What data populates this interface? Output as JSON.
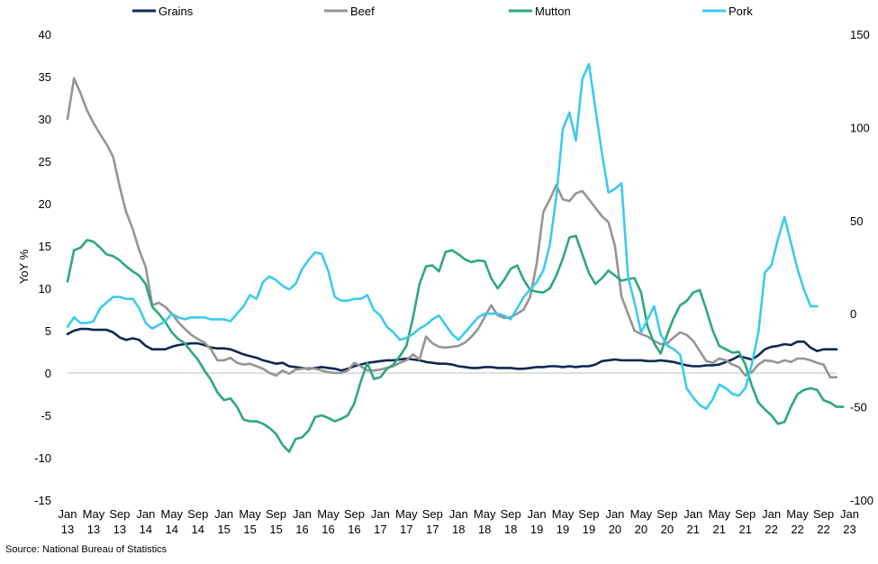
{
  "source": "Source: National Bureau of Statistics",
  "chart_data": {
    "type": "line",
    "title": "",
    "ylabel": "YoY %",
    "xlabel": "",
    "ylim": [
      -15,
      40
    ],
    "y_ticks": [
      40,
      35,
      30,
      25,
      20,
      15,
      10,
      5,
      0,
      -5,
      -10,
      -15
    ],
    "y2lim": [
      -100,
      150
    ],
    "y2_ticks": [
      150,
      100,
      50,
      0,
      -50,
      -100
    ],
    "legend_position": "top",
    "grid": false,
    "x_start": "Jan 2013",
    "x_end": "Mar 2023",
    "x_ticks": [
      {
        "top": "Jan",
        "bottom": "13"
      },
      {
        "top": "May",
        "bottom": "13"
      },
      {
        "top": "Sep",
        "bottom": "13"
      },
      {
        "top": "Jan",
        "bottom": "14"
      },
      {
        "top": "May",
        "bottom": "14"
      },
      {
        "top": "Sep",
        "bottom": "14"
      },
      {
        "top": "Jan",
        "bottom": "15"
      },
      {
        "top": "May",
        "bottom": "15"
      },
      {
        "top": "Sep",
        "bottom": "15"
      },
      {
        "top": "Jan",
        "bottom": "16"
      },
      {
        "top": "May",
        "bottom": "16"
      },
      {
        "top": "Sep",
        "bottom": "16"
      },
      {
        "top": "Jan",
        "bottom": "17"
      },
      {
        "top": "May",
        "bottom": "17"
      },
      {
        "top": "Sep",
        "bottom": "17"
      },
      {
        "top": "Jan",
        "bottom": "18"
      },
      {
        "top": "May",
        "bottom": "18"
      },
      {
        "top": "Sep",
        "bottom": "18"
      },
      {
        "top": "Jan",
        "bottom": "19"
      },
      {
        "top": "May",
        "bottom": "19"
      },
      {
        "top": "Sep",
        "bottom": "19"
      },
      {
        "top": "Jan",
        "bottom": "20"
      },
      {
        "top": "May",
        "bottom": "20"
      },
      {
        "top": "Sep",
        "bottom": "20"
      },
      {
        "top": "Jan",
        "bottom": "21"
      },
      {
        "top": "May",
        "bottom": "21"
      },
      {
        "top": "Sep",
        "bottom": "21"
      },
      {
        "top": "Jan",
        "bottom": "22"
      },
      {
        "top": "May",
        "bottom": "22"
      },
      {
        "top": "Sep",
        "bottom": "22"
      },
      {
        "top": "Jan",
        "bottom": "23"
      }
    ],
    "series": [
      {
        "name": "Grains",
        "color": "#0e2850",
        "axis": "left",
        "values": [
          4.6,
          5.0,
          5.2,
          5.2,
          5.1,
          5.1,
          5.1,
          4.8,
          4.2,
          3.9,
          4.1,
          3.9,
          3.2,
          2.8,
          2.8,
          2.8,
          3.1,
          3.3,
          3.4,
          3.5,
          3.5,
          3.3,
          3.0,
          2.9,
          2.9,
          2.8,
          2.5,
          2.2,
          2.0,
          1.8,
          1.5,
          1.3,
          1.1,
          1.2,
          0.8,
          0.7,
          0.6,
          0.5,
          0.6,
          0.7,
          0.6,
          0.5,
          0.3,
          0.5,
          0.8,
          1.0,
          1.2,
          1.3,
          1.4,
          1.5,
          1.5,
          1.6,
          1.7,
          1.6,
          1.5,
          1.3,
          1.2,
          1.1,
          1.1,
          1.0,
          0.8,
          0.7,
          0.6,
          0.6,
          0.7,
          0.7,
          0.6,
          0.6,
          0.6,
          0.5,
          0.5,
          0.6,
          0.7,
          0.7,
          0.8,
          0.8,
          0.7,
          0.8,
          0.7,
          0.8,
          0.8,
          1.0,
          1.4,
          1.5,
          1.6,
          1.5,
          1.5,
          1.5,
          1.5,
          1.4,
          1.4,
          1.5,
          1.4,
          1.3,
          1.1,
          0.9,
          0.8,
          0.8,
          0.9,
          0.9,
          1.0,
          1.3,
          1.6,
          2.0,
          1.8,
          1.6,
          2.1,
          2.8,
          3.1,
          3.2,
          3.4,
          3.3,
          3.7,
          3.7,
          3.0,
          2.6,
          2.8,
          2.8,
          2.8
        ]
      },
      {
        "name": "Beef",
        "color": "#959595",
        "axis": "left",
        "values": [
          30.0,
          34.8,
          33.0,
          31.0,
          29.5,
          28.2,
          27.0,
          25.5,
          22.0,
          19.0,
          17.0,
          14.5,
          12.5,
          8.0,
          8.3,
          7.8,
          7.0,
          6.0,
          5.2,
          4.5,
          4.0,
          3.6,
          2.8,
          1.5,
          1.5,
          1.8,
          1.2,
          1.0,
          1.1,
          0.8,
          0.5,
          0.0,
          -0.3,
          0.3,
          -0.1,
          0.4,
          0.5,
          0.6,
          0.5,
          0.3,
          0.1,
          0.0,
          0.0,
          0.3,
          1.2,
          0.8,
          0.3,
          0.3,
          0.4,
          0.6,
          0.8,
          1.2,
          1.5,
          2.2,
          1.6,
          4.3,
          3.5,
          3.1,
          3.0,
          3.1,
          3.2,
          3.6,
          4.3,
          5.2,
          6.6,
          8.0,
          6.8,
          6.5,
          6.6,
          7.0,
          7.5,
          9.0,
          13.0,
          19.0,
          20.5,
          22.2,
          20.5,
          20.3,
          21.2,
          21.5,
          20.5,
          19.5,
          18.5,
          17.8,
          15.0,
          9.0,
          7.0,
          5.0,
          4.6,
          4.3,
          3.8,
          3.4,
          3.5,
          4.2,
          4.8,
          4.5,
          3.8,
          2.6,
          1.4,
          1.2,
          1.7,
          1.5,
          1.0,
          0.7,
          -0.3,
          0.1,
          1.0,
          1.5,
          1.4,
          1.2,
          1.5,
          1.3,
          1.7,
          1.7,
          1.5,
          1.2,
          1.0,
          -0.5,
          -0.5
        ]
      },
      {
        "name": "Mutton",
        "color": "#2ea87c",
        "axis": "left",
        "values": [
          10.8,
          14.5,
          14.8,
          15.7,
          15.5,
          14.8,
          14.0,
          13.8,
          13.3,
          12.6,
          12.0,
          11.5,
          10.5,
          7.8,
          7.0,
          6.0,
          4.8,
          4.0,
          3.5,
          2.5,
          1.6,
          0.3,
          -0.8,
          -2.3,
          -3.2,
          -3.0,
          -4.0,
          -5.5,
          -5.7,
          -5.7,
          -6.0,
          -6.5,
          -7.2,
          -8.5,
          -9.3,
          -7.8,
          -7.6,
          -6.8,
          -5.2,
          -5.0,
          -5.3,
          -5.7,
          -5.4,
          -5.0,
          -3.6,
          -1.0,
          1.2,
          -0.7,
          -0.5,
          0.5,
          1.0,
          2.0,
          3.2,
          6.5,
          10.5,
          12.6,
          12.7,
          12.0,
          14.3,
          14.5,
          14.0,
          13.4,
          13.1,
          13.3,
          13.2,
          11.2,
          10.0,
          11.0,
          12.3,
          12.7,
          11.0,
          9.8,
          9.6,
          9.5,
          10.0,
          11.5,
          13.5,
          16.0,
          16.2,
          14.0,
          11.8,
          10.5,
          11.2,
          12.1,
          11.5,
          10.9,
          11.1,
          11.2,
          9.5,
          5.5,
          3.5,
          2.3,
          4.5,
          6.5,
          8.0,
          8.5,
          9.5,
          9.8,
          7.5,
          5.0,
          3.2,
          2.8,
          2.4,
          2.5,
          1.0,
          -1.5,
          -3.5,
          -4.3,
          -5.0,
          -6.0,
          -5.8,
          -4.0,
          -2.5,
          -2.0,
          -1.8,
          -2.0,
          -3.2,
          -3.5,
          -4.0,
          -4.0
        ]
      },
      {
        "name": "Pork",
        "color": "#3ccaef",
        "axis": "right",
        "values": [
          -7,
          -2,
          -5,
          -5,
          -4,
          3,
          6,
          9,
          9,
          8,
          8,
          3,
          -5,
          -8,
          -6,
          -4,
          0,
          -2,
          -3,
          -2,
          -2,
          -2,
          -3,
          -3,
          -3,
          -4,
          0,
          4,
          10,
          8,
          17,
          20,
          18,
          15,
          13,
          16,
          24,
          29,
          33,
          32,
          23,
          9,
          7,
          7,
          8,
          8,
          10,
          2,
          -1,
          -7,
          -10,
          -14,
          -13,
          -11,
          -8,
          -6,
          -3,
          -1,
          -6,
          -11,
          -14,
          -10,
          -6,
          -2,
          0,
          0,
          0,
          -1,
          -3,
          3,
          9,
          13,
          17,
          23,
          37,
          63,
          99,
          108,
          93,
          126,
          134,
          110,
          86,
          65,
          67,
          70,
          20,
          6,
          -10,
          -3,
          4,
          -11,
          -17,
          -19,
          -22,
          -40,
          -45,
          -49,
          -51,
          -46,
          -38,
          -40,
          -43,
          -44,
          -40,
          -27,
          -10,
          22,
          26,
          40,
          52,
          38,
          24,
          13,
          4,
          4
        ]
      }
    ]
  }
}
